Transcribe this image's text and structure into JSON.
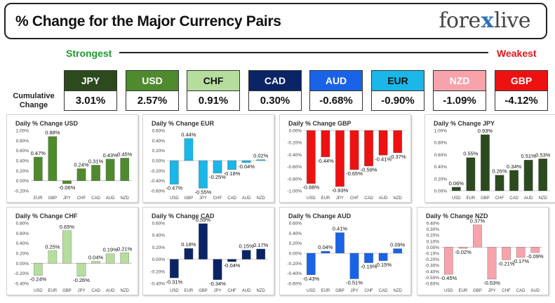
{
  "header": {
    "title": "% Change for the Major Currency Pairs",
    "logo_left": "fore",
    "logo_x": "x",
    "logo_right": "live"
  },
  "scale": {
    "strongest": "Strongest",
    "weakest": "Weakest"
  },
  "cumulative_label": "Cumulative Change",
  "currencies": [
    {
      "name": "JPY",
      "value": "3.01%",
      "color": "#2c4a1e",
      "text_color": "#ffffff"
    },
    {
      "name": "USD",
      "value": "2.57%",
      "color": "#4f8a2e",
      "text_color": "#ffffff"
    },
    {
      "name": "CHF",
      "value": "0.91%",
      "color": "#b6dd9e",
      "text_color": "#111111"
    },
    {
      "name": "CAD",
      "value": "0.30%",
      "color": "#0a2466",
      "text_color": "#ffffff"
    },
    {
      "name": "AUD",
      "value": "-0.68%",
      "color": "#1a63e6",
      "text_color": "#ffffff"
    },
    {
      "name": "EUR",
      "value": "-0.90%",
      "color": "#1ab7e8",
      "text_color": "#111111"
    },
    {
      "name": "NZD",
      "value": "-1.09%",
      "color": "#f7a3ab",
      "text_color": "#ffffff"
    },
    {
      "name": "GBP",
      "value": "-4.12%",
      "color": "#ee1111",
      "text_color": "#ffffff"
    }
  ],
  "chart_data": [
    {
      "type": "bar",
      "title": "Daily % Change USD",
      "color": "#4f8a2e",
      "ylim": [
        -0.2,
        1.0
      ],
      "step": 0.2,
      "categories": [
        "EUR",
        "GBP",
        "JPY",
        "CHF",
        "CAD",
        "AUD",
        "NZD"
      ],
      "values": [
        0.47,
        0.88,
        -0.06,
        0.24,
        0.31,
        0.43,
        0.45
      ],
      "labels": [
        "0.47%",
        "0.88%",
        "-0.06%",
        "0.24%",
        "0.31%",
        "0.43%",
        "0.45%"
      ]
    },
    {
      "type": "bar",
      "title": "Daily % Change EUR",
      "color": "#1ab7e8",
      "ylim": [
        -0.6,
        0.6
      ],
      "step": 0.2,
      "categories": [
        "USD",
        "GBP",
        "JPY",
        "CHF",
        "CAD",
        "AUD",
        "NZD"
      ],
      "values": [
        -0.47,
        0.44,
        -0.55,
        -0.25,
        -0.18,
        -0.04,
        0.02
      ],
      "labels": [
        "-0.47%",
        "0.44%",
        "-0.55%",
        "-0.25%",
        "-0.18%",
        "-0.04%",
        "0.02%"
      ]
    },
    {
      "type": "bar",
      "title": "Daily % Change GBP",
      "color": "#ee1111",
      "ylim": [
        -1.0,
        0.0
      ],
      "step": 0.2,
      "categories": [
        "USD",
        "EUR",
        "JPY",
        "CHF",
        "CAD",
        "AUD",
        "NZD"
      ],
      "values": [
        -0.88,
        -0.44,
        -0.93,
        -0.65,
        -0.59,
        -0.41,
        -0.37
      ],
      "labels": [
        "-0.88%",
        "-0.44%",
        "-0.93%",
        "-0.65%",
        "-0.59%",
        "-0.41%",
        "-0.37%"
      ]
    },
    {
      "type": "bar",
      "title": "Daily % Change JPY",
      "color": "#2c4a1e",
      "ylim": [
        0.0,
        1.0
      ],
      "step": 0.2,
      "categories": [
        "USD",
        "EUR",
        "GBP",
        "CHF",
        "CAD",
        "AUD",
        "NZD"
      ],
      "values": [
        0.06,
        0.55,
        0.93,
        0.26,
        0.34,
        0.51,
        0.53
      ],
      "labels": [
        "0.06%",
        "0.55%",
        "0.93%",
        "0.26%",
        "0.34%",
        "0.51%",
        "0.53%"
      ]
    },
    {
      "type": "bar",
      "title": "Daily % Change CHF",
      "color": "#b6dd9e",
      "ylim": [
        -0.4,
        0.8
      ],
      "step": 0.2,
      "categories": [
        "USD",
        "EUR",
        "GBP",
        "JPY",
        "CAD",
        "AUD",
        "NZD"
      ],
      "values": [
        -0.24,
        0.25,
        0.65,
        -0.26,
        0.04,
        0.19,
        0.21
      ],
      "labels": [
        "-0.24%",
        "0.25%",
        "0.65%",
        "-0.26%",
        "0.04%",
        "0.19%",
        "0.21%"
      ]
    },
    {
      "type": "bar",
      "title": "Daily % Change CAD",
      "color": "#0a2466",
      "ylim": [
        -0.4,
        0.6
      ],
      "step": 0.2,
      "categories": [
        "USD",
        "EUR",
        "GBP",
        "JPY",
        "CHF",
        "AUD",
        "NZD"
      ],
      "values": [
        -0.31,
        0.18,
        0.59,
        -0.34,
        -0.04,
        0.15,
        0.17
      ],
      "labels": [
        "-0.31%",
        "0.18%",
        "0.59%",
        "-0.34%",
        "-0.04%",
        "0.15%",
        "0.17%"
      ]
    },
    {
      "type": "bar",
      "title": "Daily % Change AUD",
      "color": "#1a63e6",
      "ylim": [
        -0.6,
        0.6
      ],
      "step": 0.2,
      "categories": [
        "USD",
        "EUR",
        "GBP",
        "JPY",
        "CHF",
        "CAD",
        "NZD"
      ],
      "values": [
        -0.43,
        0.04,
        0.41,
        -0.51,
        -0.19,
        -0.15,
        0.09
      ],
      "labels": [
        "-0.43%",
        "0.04%",
        "0.41%",
        "-0.51%",
        "-0.19%",
        "-0.15%",
        "0.09%"
      ]
    },
    {
      "type": "bar",
      "title": "Daily % Change NZD",
      "color": "#f7a3ab",
      "ylim": [
        -0.6,
        0.4
      ],
      "step": 0.1,
      "categories": [
        "USD",
        "EUR",
        "GBP",
        "JPY",
        "CHF",
        "CAD",
        "AUD"
      ],
      "values": [
        -0.45,
        -0.02,
        0.37,
        -0.53,
        -0.21,
        -0.17,
        -0.09
      ],
      "labels": [
        "-0.45%",
        "-0.02%",
        "0.37%",
        "-0.53%",
        "-0.21%",
        "-0.17%",
        "-0.09%"
      ]
    }
  ]
}
